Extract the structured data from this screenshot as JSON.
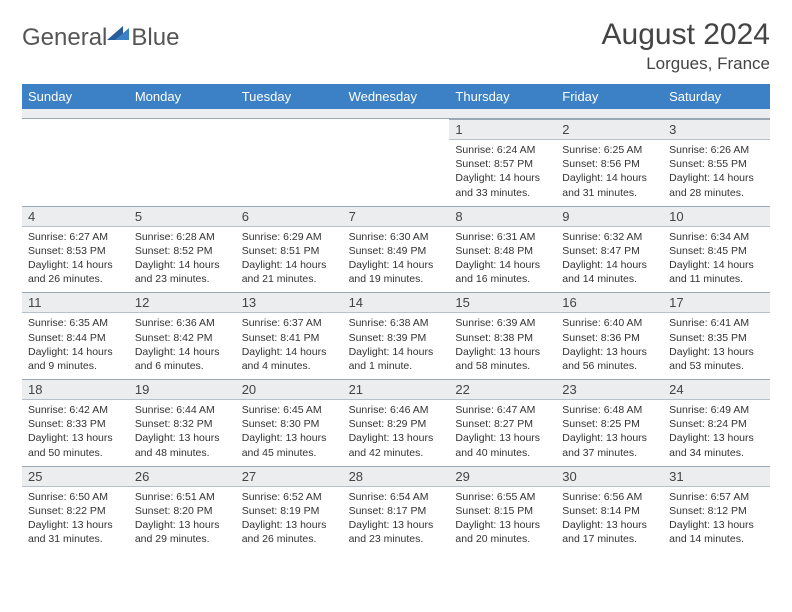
{
  "brand": {
    "word1": "General",
    "word2": "Blue"
  },
  "title": "August 2024",
  "location": "Lorgues, France",
  "colors": {
    "header_bg": "#3c81c5",
    "daynum_bg": "#ecedee",
    "daynum_border_top": "#9aa8b5",
    "text": "#333333"
  },
  "weekdays": [
    "Sunday",
    "Monday",
    "Tuesday",
    "Wednesday",
    "Thursday",
    "Friday",
    "Saturday"
  ],
  "weeks": [
    [
      {
        "empty": true
      },
      {
        "empty": true
      },
      {
        "empty": true
      },
      {
        "empty": true
      },
      {
        "n": "1",
        "sr": "6:24 AM",
        "ss": "8:57 PM",
        "dl": "14 hours and 33 minutes."
      },
      {
        "n": "2",
        "sr": "6:25 AM",
        "ss": "8:56 PM",
        "dl": "14 hours and 31 minutes."
      },
      {
        "n": "3",
        "sr": "6:26 AM",
        "ss": "8:55 PM",
        "dl": "14 hours and 28 minutes."
      }
    ],
    [
      {
        "n": "4",
        "sr": "6:27 AM",
        "ss": "8:53 PM",
        "dl": "14 hours and 26 minutes."
      },
      {
        "n": "5",
        "sr": "6:28 AM",
        "ss": "8:52 PM",
        "dl": "14 hours and 23 minutes."
      },
      {
        "n": "6",
        "sr": "6:29 AM",
        "ss": "8:51 PM",
        "dl": "14 hours and 21 minutes."
      },
      {
        "n": "7",
        "sr": "6:30 AM",
        "ss": "8:49 PM",
        "dl": "14 hours and 19 minutes."
      },
      {
        "n": "8",
        "sr": "6:31 AM",
        "ss": "8:48 PM",
        "dl": "14 hours and 16 minutes."
      },
      {
        "n": "9",
        "sr": "6:32 AM",
        "ss": "8:47 PM",
        "dl": "14 hours and 14 minutes."
      },
      {
        "n": "10",
        "sr": "6:34 AM",
        "ss": "8:45 PM",
        "dl": "14 hours and 11 minutes."
      }
    ],
    [
      {
        "n": "11",
        "sr": "6:35 AM",
        "ss": "8:44 PM",
        "dl": "14 hours and 9 minutes."
      },
      {
        "n": "12",
        "sr": "6:36 AM",
        "ss": "8:42 PM",
        "dl": "14 hours and 6 minutes."
      },
      {
        "n": "13",
        "sr": "6:37 AM",
        "ss": "8:41 PM",
        "dl": "14 hours and 4 minutes."
      },
      {
        "n": "14",
        "sr": "6:38 AM",
        "ss": "8:39 PM",
        "dl": "14 hours and 1 minute."
      },
      {
        "n": "15",
        "sr": "6:39 AM",
        "ss": "8:38 PM",
        "dl": "13 hours and 58 minutes."
      },
      {
        "n": "16",
        "sr": "6:40 AM",
        "ss": "8:36 PM",
        "dl": "13 hours and 56 minutes."
      },
      {
        "n": "17",
        "sr": "6:41 AM",
        "ss": "8:35 PM",
        "dl": "13 hours and 53 minutes."
      }
    ],
    [
      {
        "n": "18",
        "sr": "6:42 AM",
        "ss": "8:33 PM",
        "dl": "13 hours and 50 minutes."
      },
      {
        "n": "19",
        "sr": "6:44 AM",
        "ss": "8:32 PM",
        "dl": "13 hours and 48 minutes."
      },
      {
        "n": "20",
        "sr": "6:45 AM",
        "ss": "8:30 PM",
        "dl": "13 hours and 45 minutes."
      },
      {
        "n": "21",
        "sr": "6:46 AM",
        "ss": "8:29 PM",
        "dl": "13 hours and 42 minutes."
      },
      {
        "n": "22",
        "sr": "6:47 AM",
        "ss": "8:27 PM",
        "dl": "13 hours and 40 minutes."
      },
      {
        "n": "23",
        "sr": "6:48 AM",
        "ss": "8:25 PM",
        "dl": "13 hours and 37 minutes."
      },
      {
        "n": "24",
        "sr": "6:49 AM",
        "ss": "8:24 PM",
        "dl": "13 hours and 34 minutes."
      }
    ],
    [
      {
        "n": "25",
        "sr": "6:50 AM",
        "ss": "8:22 PM",
        "dl": "13 hours and 31 minutes."
      },
      {
        "n": "26",
        "sr": "6:51 AM",
        "ss": "8:20 PM",
        "dl": "13 hours and 29 minutes."
      },
      {
        "n": "27",
        "sr": "6:52 AM",
        "ss": "8:19 PM",
        "dl": "13 hours and 26 minutes."
      },
      {
        "n": "28",
        "sr": "6:54 AM",
        "ss": "8:17 PM",
        "dl": "13 hours and 23 minutes."
      },
      {
        "n": "29",
        "sr": "6:55 AM",
        "ss": "8:15 PM",
        "dl": "13 hours and 20 minutes."
      },
      {
        "n": "30",
        "sr": "6:56 AM",
        "ss": "8:14 PM",
        "dl": "13 hours and 17 minutes."
      },
      {
        "n": "31",
        "sr": "6:57 AM",
        "ss": "8:12 PM",
        "dl": "13 hours and 14 minutes."
      }
    ]
  ],
  "labels": {
    "sunrise": "Sunrise:",
    "sunset": "Sunset:",
    "daylight": "Daylight:"
  }
}
